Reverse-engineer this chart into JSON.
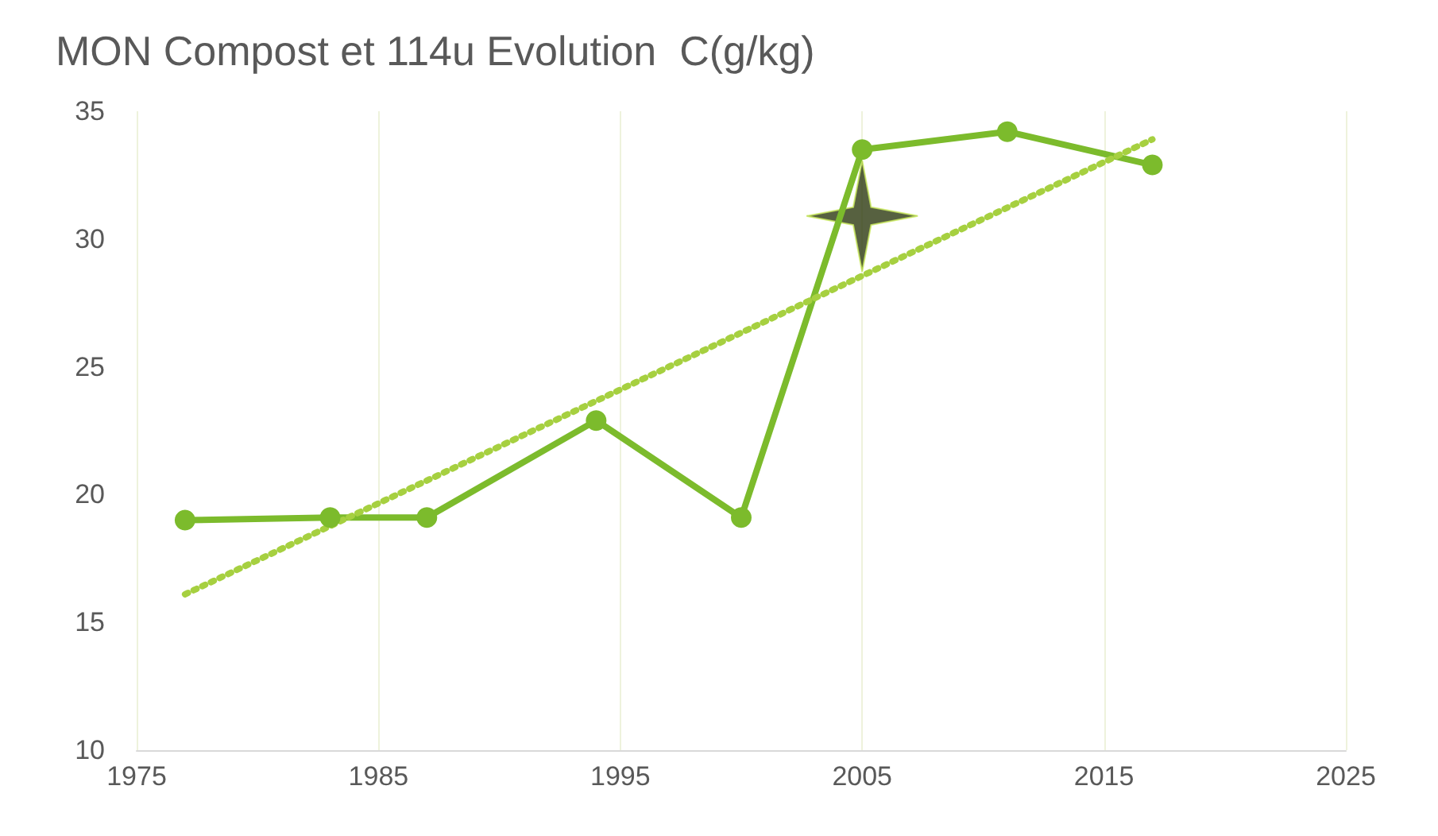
{
  "chart_data": {
    "type": "line",
    "title": "MON Compost et 114u Evolution  C(g/kg)",
    "xlim": [
      1975,
      2025
    ],
    "xticks": [
      1975,
      1985,
      1995,
      2005,
      2015,
      2025
    ],
    "ylim": [
      10,
      35
    ],
    "yticks": [
      10,
      15,
      20,
      25,
      30,
      35
    ],
    "grid": "x",
    "marker": "circle",
    "series": [
      {
        "color": "#7cbb2c",
        "x": [
          1977,
          1983,
          1987,
          1994,
          2000,
          2005,
          2011,
          2017
        ],
        "values": [
          19.0,
          19.1,
          19.1,
          22.9,
          19.1,
          33.5,
          34.2,
          32.9
        ]
      },
      {
        "type": "line",
        "color": "#a6d040",
        "line_style": "dotted",
        "marker": "none",
        "x": [
          1977,
          2017
        ],
        "values": [
          16.1,
          33.9
        ]
      },
      {
        "type": "scatter",
        "color": "#2d3a10",
        "marker": "star",
        "x": [
          2005
        ],
        "values": [
          30.9
        ]
      }
    ]
  }
}
